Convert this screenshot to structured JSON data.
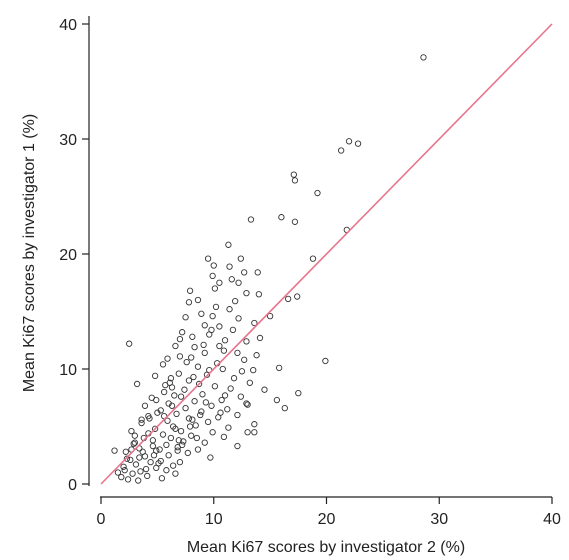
{
  "chart_data": {
    "type": "scatter",
    "title": "",
    "xlabel": "Mean Ki67 scores by investigator 2 (%)",
    "ylabel": "Mean Ki67 scores by investigator 1 (%)",
    "xlim": [
      0,
      40
    ],
    "ylim": [
      0,
      40
    ],
    "xticks": [
      "0",
      "10",
      "20",
      "30",
      "40"
    ],
    "yticks": [
      "0",
      "10",
      "20",
      "30",
      "40"
    ],
    "grid": false,
    "reference_line": {
      "x": [
        0,
        40
      ],
      "y": [
        0,
        40
      ],
      "color": "#e8748c"
    },
    "marker_color": "#333333",
    "points": [
      [
        28.6,
        37.1
      ],
      [
        22.0,
        29.8
      ],
      [
        22.8,
        29.6
      ],
      [
        21.3,
        29.0
      ],
      [
        17.1,
        26.9
      ],
      [
        17.2,
        26.4
      ],
      [
        19.2,
        25.3
      ],
      [
        16.0,
        23.2
      ],
      [
        13.3,
        23.0
      ],
      [
        17.2,
        22.8
      ],
      [
        21.8,
        22.1
      ],
      [
        11.3,
        20.8
      ],
      [
        18.8,
        19.6
      ],
      [
        9.5,
        19.6
      ],
      [
        10.0,
        19.0
      ],
      [
        12.7,
        18.4
      ],
      [
        9.9,
        18.1
      ],
      [
        11.6,
        17.8
      ],
      [
        10.5,
        17.5
      ],
      [
        12.2,
        17.5
      ],
      [
        7.9,
        16.8
      ],
      [
        14.0,
        16.5
      ],
      [
        17.4,
        16.3
      ],
      [
        16.6,
        16.1
      ],
      [
        12.9,
        16.6
      ],
      [
        7.8,
        15.8
      ],
      [
        11.4,
        15.2
      ],
      [
        8.9,
        14.8
      ],
      [
        9.9,
        14.6
      ],
      [
        7.5,
        14.5
      ],
      [
        15.0,
        14.6
      ],
      [
        12.2,
        14.4
      ],
      [
        13.6,
        14.0
      ],
      [
        10.5,
        13.7
      ],
      [
        7.2,
        13.2
      ],
      [
        9.6,
        13.0
      ],
      [
        8.1,
        12.8
      ],
      [
        11.0,
        12.5
      ],
      [
        12.9,
        12.4
      ],
      [
        2.5,
        12.2
      ],
      [
        6.6,
        12.0
      ],
      [
        8.3,
        11.9
      ],
      [
        12.1,
        11.4
      ],
      [
        9.2,
        11.4
      ],
      [
        13.8,
        11.2
      ],
      [
        7.0,
        11.1
      ],
      [
        19.9,
        10.7
      ],
      [
        10.3,
        10.5
      ],
      [
        5.5,
        10.4
      ],
      [
        8.6,
        10.2
      ],
      [
        10.8,
        10.0
      ],
      [
        15.8,
        10.1
      ],
      [
        12.5,
        9.8
      ],
      [
        6.9,
        9.6
      ],
      [
        9.4,
        9.5
      ],
      [
        4.8,
        9.4
      ],
      [
        11.8,
        9.2
      ],
      [
        7.8,
        9.0
      ],
      [
        13.2,
        8.8
      ],
      [
        8.7,
        8.7
      ],
      [
        10.1,
        8.5
      ],
      [
        3.2,
        8.7
      ],
      [
        6.3,
        8.4
      ],
      [
        11.5,
        8.3
      ],
      [
        14.5,
        8.2
      ],
      [
        17.5,
        7.9
      ],
      [
        5.6,
        8.0
      ],
      [
        9.0,
        7.8
      ],
      [
        12.4,
        7.6
      ],
      [
        7.1,
        7.6
      ],
      [
        4.5,
        7.5
      ],
      [
        10.7,
        7.3
      ],
      [
        8.3,
        7.2
      ],
      [
        15.6,
        7.3
      ],
      [
        6.0,
        7.0
      ],
      [
        13.0,
        6.9
      ],
      [
        9.8,
        6.8
      ],
      [
        3.9,
        6.8
      ],
      [
        7.5,
        6.6
      ],
      [
        11.2,
        6.5
      ],
      [
        5.3,
        6.4
      ],
      [
        8.9,
        6.3
      ],
      [
        16.3,
        6.6
      ],
      [
        6.7,
        6.1
      ],
      [
        12.1,
        6.0
      ],
      [
        4.2,
        5.9
      ],
      [
        10.4,
        5.8
      ],
      [
        7.8,
        5.7
      ],
      [
        5.9,
        5.5
      ],
      [
        9.5,
        5.4
      ],
      [
        3.6,
        5.3
      ],
      [
        13.6,
        5.2
      ],
      [
        8.4,
        5.1
      ],
      [
        6.4,
        5.0
      ],
      [
        11.3,
        4.9
      ],
      [
        4.8,
        4.8
      ],
      [
        7.1,
        4.6
      ],
      [
        9.9,
        4.5
      ],
      [
        2.7,
        4.6
      ],
      [
        13.0,
        4.5
      ],
      [
        13.6,
        4.5
      ],
      [
        5.5,
        4.3
      ],
      [
        8.0,
        4.2
      ],
      [
        6.2,
        4.0
      ],
      [
        3.8,
        4.0
      ],
      [
        10.9,
        4.1
      ],
      [
        4.6,
        3.8
      ],
      [
        7.3,
        3.7
      ],
      [
        9.2,
        3.6
      ],
      [
        2.9,
        3.5
      ],
      [
        5.8,
        3.4
      ],
      [
        12.1,
        3.3
      ],
      [
        6.8,
        3.2
      ],
      [
        3.4,
        3.1
      ],
      [
        8.6,
        3.0
      ],
      [
        4.9,
        2.9
      ],
      [
        1.2,
        2.9
      ],
      [
        2.2,
        2.8
      ],
      [
        7.7,
        2.7
      ],
      [
        6.0,
        2.5
      ],
      [
        3.9,
        2.4
      ],
      [
        9.7,
        2.3
      ],
      [
        2.6,
        2.1
      ],
      [
        5.3,
        2.0
      ],
      [
        4.4,
        1.9
      ],
      [
        7.0,
        1.9
      ],
      [
        3.1,
        1.7
      ],
      [
        6.4,
        1.6
      ],
      [
        2.0,
        1.5
      ],
      [
        4.9,
        1.4
      ],
      [
        5.8,
        1.2
      ],
      [
        3.5,
        1.1
      ],
      [
        1.5,
        1.0
      ],
      [
        2.8,
        0.9
      ],
      [
        6.6,
        0.9
      ],
      [
        4.1,
        0.7
      ],
      [
        5.4,
        0.5
      ],
      [
        2.4,
        0.4
      ],
      [
        3.3,
        0.3
      ],
      [
        1.8,
        0.6
      ],
      [
        4.7,
        2.5
      ],
      [
        6.9,
        3.8
      ],
      [
        8.1,
        5.6
      ],
      [
        5.0,
        6.2
      ],
      [
        3.0,
        4.2
      ],
      [
        7.4,
        8.2
      ],
      [
        9.6,
        9.9
      ],
      [
        10.9,
        11.6
      ],
      [
        6.1,
        8.8
      ],
      [
        4.3,
        5.7
      ],
      [
        8.8,
        6.0
      ],
      [
        11.7,
        13.4
      ],
      [
        5.2,
        3.0
      ],
      [
        2.3,
        2.2
      ],
      [
        6.6,
        4.8
      ],
      [
        8.2,
        9.3
      ],
      [
        12.7,
        10.8
      ],
      [
        9.1,
        12.1
      ],
      [
        10.2,
        15.4
      ],
      [
        7.6,
        10.6
      ],
      [
        3.7,
        2.8
      ],
      [
        4.6,
        3.3
      ],
      [
        6.3,
        6.8
      ],
      [
        5.7,
        8.6
      ],
      [
        11.0,
        7.7
      ],
      [
        14.1,
        12.7
      ],
      [
        13.5,
        9.9
      ],
      [
        8.5,
        4.0
      ],
      [
        10.6,
        6.2
      ],
      [
        7.9,
        5.0
      ],
      [
        9.3,
        7.1
      ],
      [
        12.9,
        7.0
      ],
      [
        3.4,
        2.3
      ],
      [
        2.1,
        1.2
      ],
      [
        4.0,
        1.3
      ],
      [
        5.1,
        1.8
      ],
      [
        6.8,
        2.9
      ],
      [
        7.2,
        3.4
      ],
      [
        3.0,
        3.6
      ],
      [
        4.2,
        4.4
      ],
      [
        5.6,
        5.9
      ],
      [
        6.5,
        7.7
      ],
      [
        8.0,
        11.0
      ],
      [
        9.8,
        13.4
      ],
      [
        10.5,
        12.0
      ],
      [
        11.9,
        15.9
      ],
      [
        12.4,
        19.6
      ],
      [
        10.1,
        17.0
      ],
      [
        8.6,
        16.0
      ],
      [
        9.2,
        13.8
      ],
      [
        13.9,
        18.4
      ],
      [
        11.4,
        18.9
      ],
      [
        7.0,
        12.6
      ],
      [
        5.9,
        10.9
      ],
      [
        6.2,
        9.2
      ],
      [
        4.9,
        7.3
      ],
      [
        3.6,
        5.6
      ],
      [
        2.7,
        3.0
      ]
    ]
  }
}
